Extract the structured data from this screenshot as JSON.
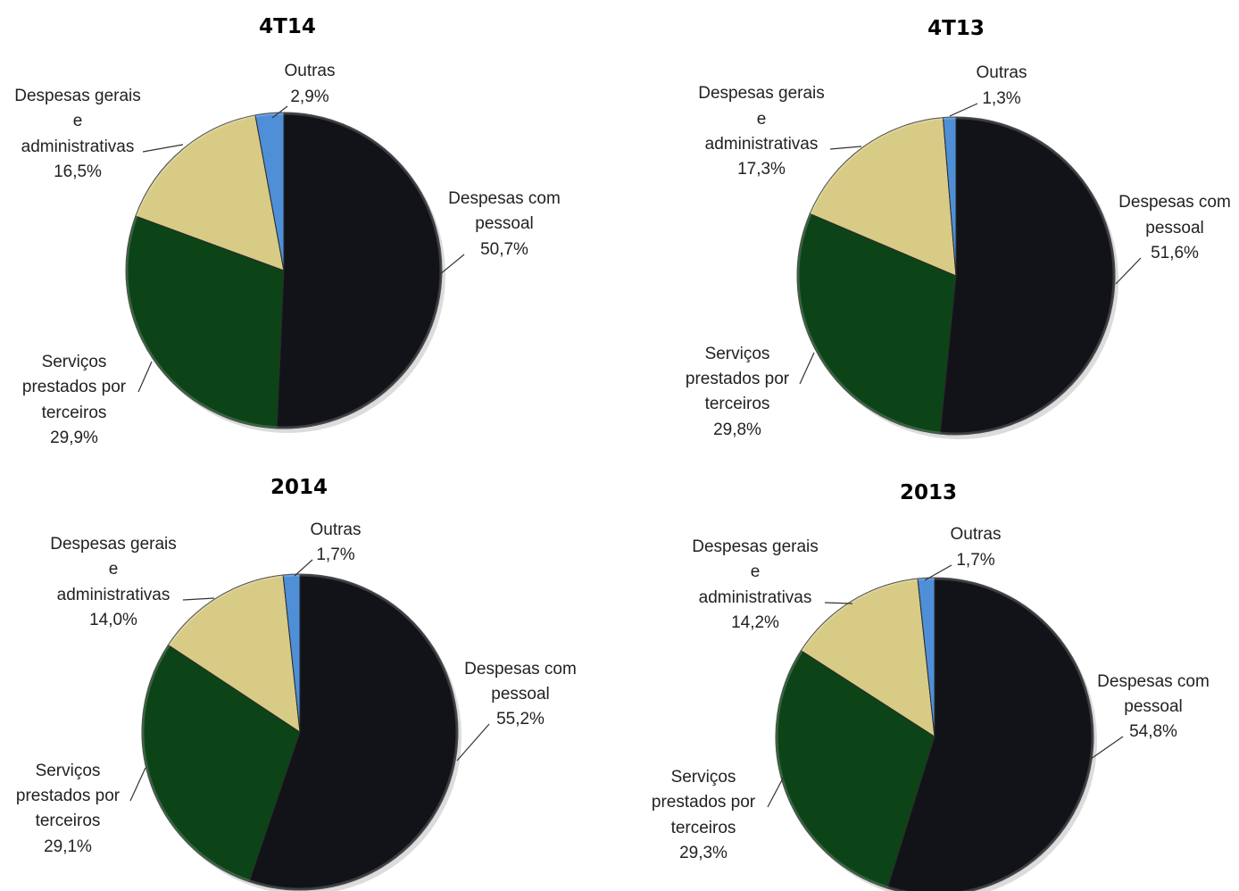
{
  "chart_data": [
    {
      "type": "pie",
      "title": "4T14",
      "slices": [
        {
          "label": "Despesas com pessoal",
          "value": 50.7,
          "display": "50,7%",
          "color": "#111318"
        },
        {
          "label": "Serviços prestados por terceiros",
          "value": 29.9,
          "display": "29,9%",
          "color": "#0c4417"
        },
        {
          "label": "Despesas gerais e administrativas",
          "value": 16.5,
          "display": "16,5%",
          "color": "#d7cb86"
        },
        {
          "label": "Outras",
          "value": 2.9,
          "display": "2,9%",
          "color": "#4e8fd8"
        }
      ]
    },
    {
      "type": "pie",
      "title": "4T13",
      "slices": [
        {
          "label": "Despesas com pessoal",
          "value": 51.6,
          "display": "51,6%",
          "color": "#111318"
        },
        {
          "label": "Serviços prestados por terceiros",
          "value": 29.8,
          "display": "29,8%",
          "color": "#0c4417"
        },
        {
          "label": "Despesas gerais e administrativas",
          "value": 17.3,
          "display": "17,3%",
          "color": "#d7cb86"
        },
        {
          "label": "Outras",
          "value": 1.3,
          "display": "1,3%",
          "color": "#4e8fd8"
        }
      ]
    },
    {
      "type": "pie",
      "title": "2014",
      "slices": [
        {
          "label": "Despesas com pessoal",
          "value": 55.2,
          "display": "55,2%",
          "color": "#111318"
        },
        {
          "label": "Serviços prestados por terceiros",
          "value": 29.1,
          "display": "29,1%",
          "color": "#0c4417"
        },
        {
          "label": "Despesas gerais e administrativas",
          "value": 14.0,
          "display": "14,0%",
          "color": "#d7cb86"
        },
        {
          "label": "Outras",
          "value": 1.7,
          "display": "1,7%",
          "color": "#4e8fd8"
        }
      ]
    },
    {
      "type": "pie",
      "title": "2013",
      "slices": [
        {
          "label": "Despesas com pessoal",
          "value": 54.8,
          "display": "54,8%",
          "color": "#111318"
        },
        {
          "label": "Serviços prestados por terceiros",
          "value": 29.3,
          "display": "29,3%",
          "color": "#0c4417"
        },
        {
          "label": "Despesas gerais e administrativas",
          "value": 14.2,
          "display": "14,2%",
          "color": "#d7cb86"
        },
        {
          "label": "Outras",
          "value": 1.7,
          "display": "1,7%",
          "color": "#4e8fd8"
        }
      ]
    }
  ]
}
